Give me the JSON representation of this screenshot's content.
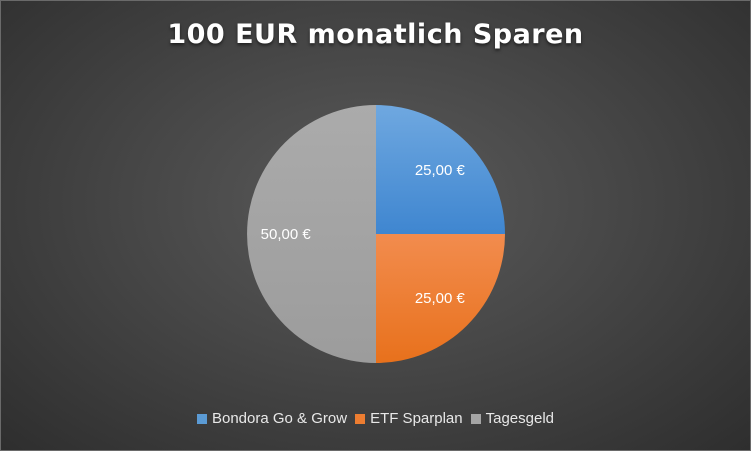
{
  "chart_data": {
    "type": "pie",
    "title": "100 EUR monatlich Sparen",
    "categories": [
      "Bondora Go & Grow",
      "ETF Sparplan",
      "Tagesgeld"
    ],
    "values": [
      25,
      25,
      50
    ],
    "data_labels": [
      "25,00 €",
      "25,00 €",
      "50,00 €"
    ],
    "colors": [
      "#5b9bd5",
      "#ed7d31",
      "#a5a5a5"
    ],
    "legend_position": "bottom"
  }
}
